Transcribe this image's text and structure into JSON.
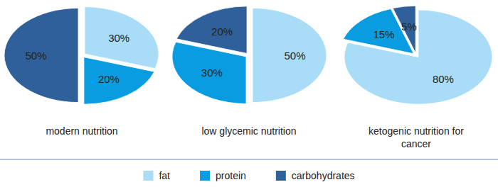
{
  "chart_data": [
    {
      "type": "pie",
      "title": "modern nutrition",
      "categories": [
        "fat",
        "protein",
        "carbohydrates"
      ],
      "values": [
        30,
        20,
        50
      ],
      "value_labels": [
        "30%",
        "20%",
        "50%"
      ],
      "colors": [
        "#a9dcf6",
        "#0a9ce0",
        "#30609a"
      ],
      "data_labels": true,
      "legend": "bottom"
    },
    {
      "type": "pie",
      "title": "low glycemic nutrition",
      "categories": [
        "fat",
        "protein",
        "carbohydrates"
      ],
      "values": [
        50,
        30,
        20
      ],
      "value_labels": [
        "50%",
        "30%",
        "20%"
      ],
      "colors": [
        "#a9dcf6",
        "#0a9ce0",
        "#30609a"
      ],
      "data_labels": true,
      "legend": "bottom"
    },
    {
      "type": "pie",
      "title": "ketogenic nutrition for cancer",
      "categories": [
        "fat",
        "protein",
        "carbohydrates"
      ],
      "values": [
        80,
        15,
        5
      ],
      "value_labels": [
        "80%",
        "15%",
        "5%"
      ],
      "colors": [
        "#a9dcf6",
        "#0a9ce0",
        "#30609a"
      ],
      "data_labels": true,
      "legend": "bottom"
    }
  ]
}
